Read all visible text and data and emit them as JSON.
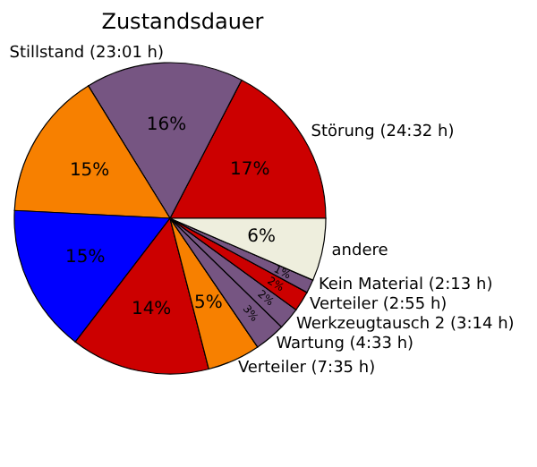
{
  "chart_data": {
    "type": "pie",
    "title": "Zustandsdauer",
    "categories": [
      "Störung (24:32 h)",
      "Stillstand (23:01 h)",
      null,
      null,
      null,
      "Verteiler (7:35 h)",
      "Wartung (4:33 h)",
      "Werkzeugtausch 2 (3:14 h)",
      "Verteiler (2:55 h)",
      "Kein Material (2:13 h)",
      "andere"
    ],
    "values": [
      17.4,
      16.4,
      15.4,
      15.4,
      14.4,
      5.5,
      3.2,
      2.3,
      2.1,
      1.4,
      6.5
    ],
    "value_labels": [
      "17%",
      "16%",
      "15%",
      "15%",
      "14%",
      "5%",
      "3%",
      "2%",
      "2%",
      "1%",
      "6%"
    ],
    "colors": [
      "#cc0000",
      "#765582",
      "#f78000",
      "#0000ff",
      "#cc0000",
      "#f78000",
      "#765582",
      "#765582",
      "#cc0000",
      "#765582",
      "#eeeedd"
    ]
  }
}
